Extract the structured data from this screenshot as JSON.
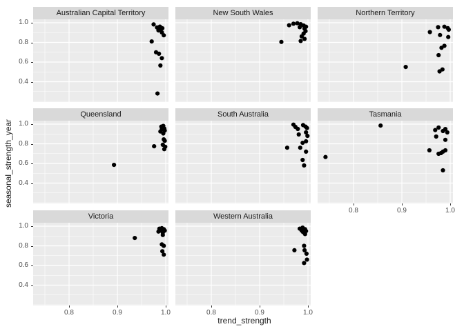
{
  "figure": {
    "colors": {
      "background": "#ffffff",
      "panel_bg": "#ebebeb",
      "strip_bg": "#d9d9d9",
      "grid": "#ffffff",
      "point": "#000000",
      "tick_text": "#4d4d4d",
      "title_text": "#1a1a1a"
    }
  },
  "chart_data": {
    "type": "scatter",
    "title": "",
    "xlabel": "trend_strength",
    "ylabel": "seasonal_strength_year",
    "legend": "none",
    "grid": "on",
    "facet_columns": 3,
    "xlim": [
      0.7257,
      1.0057
    ],
    "ylim": [
      0.193,
      1.0351
    ],
    "x_ticks": [
      0.8,
      0.9,
      1.0
    ],
    "y_ticks": [
      1.0,
      0.8,
      0.6,
      0.4
    ],
    "x_tick_labels": [
      "0.8",
      "0.9",
      "1.0"
    ],
    "y_tick_labels": [
      "1.0",
      "0.8",
      "0.6",
      "0.4"
    ],
    "x_minor_ticks": [
      0.75,
      0.85,
      0.95
    ],
    "y_minor_ticks": [
      0.2,
      0.3,
      0.5,
      0.7,
      0.9
    ],
    "facets": [
      {
        "label": "Australian Capital Territory",
        "points": [
          [
            0.975,
            0.983
          ],
          [
            0.982,
            0.952
          ],
          [
            0.988,
            0.961
          ],
          [
            0.99,
            0.937
          ],
          [
            0.993,
            0.944
          ],
          [
            0.985,
            0.922
          ],
          [
            0.992,
            0.902
          ],
          [
            0.996,
            0.872
          ],
          [
            0.971,
            0.81
          ],
          [
            0.98,
            0.7
          ],
          [
            0.986,
            0.685
          ],
          [
            0.992,
            0.64
          ],
          [
            0.989,
            0.565
          ],
          [
            0.983,
            0.28
          ]
        ]
      },
      {
        "label": "New South Wales",
        "points": [
          [
            0.961,
            0.975
          ],
          [
            0.97,
            0.99
          ],
          [
            0.978,
            0.995
          ],
          [
            0.985,
            0.985
          ],
          [
            0.991,
            0.972
          ],
          [
            0.996,
            0.96
          ],
          [
            0.983,
            0.955
          ],
          [
            0.993,
            0.94
          ],
          [
            0.995,
            0.915
          ],
          [
            0.991,
            0.89
          ],
          [
            0.987,
            0.862
          ],
          [
            0.993,
            0.836
          ],
          [
            0.985,
            0.815
          ],
          [
            0.945,
            0.805
          ]
        ]
      },
      {
        "label": "Northern Territory",
        "points": [
          [
            0.975,
            0.955
          ],
          [
            0.988,
            0.96
          ],
          [
            0.995,
            0.945
          ],
          [
            0.958,
            0.905
          ],
          [
            0.997,
            0.93
          ],
          [
            0.979,
            0.875
          ],
          [
            0.996,
            0.855
          ],
          [
            0.988,
            0.765
          ],
          [
            0.982,
            0.745
          ],
          [
            0.976,
            0.67
          ],
          [
            0.908,
            0.55
          ],
          [
            0.984,
            0.525
          ],
          [
            0.978,
            0.505
          ]
        ]
      },
      {
        "label": "Queensland",
        "points": [
          [
            0.991,
            0.975
          ],
          [
            0.995,
            0.982
          ],
          [
            0.997,
            0.955
          ],
          [
            0.992,
            0.948
          ],
          [
            0.998,
            0.935
          ],
          [
            0.989,
            0.925
          ],
          [
            0.995,
            0.905
          ],
          [
            0.996,
            0.845
          ],
          [
            0.998,
            0.83
          ],
          [
            0.994,
            0.79
          ],
          [
            0.999,
            0.77
          ],
          [
            0.976,
            0.775
          ],
          [
            0.997,
            0.745
          ],
          [
            0.893,
            0.585
          ]
        ]
      },
      {
        "label": "South Australia",
        "points": [
          [
            0.97,
            0.995
          ],
          [
            0.974,
            0.972
          ],
          [
            0.979,
            0.951
          ],
          [
            0.99,
            0.99
          ],
          [
            0.995,
            0.975
          ],
          [
            0.998,
            0.96
          ],
          [
            0.996,
            0.916
          ],
          [
            0.981,
            0.895
          ],
          [
            0.999,
            0.88
          ],
          [
            0.996,
            0.825
          ],
          [
            0.989,
            0.81
          ],
          [
            0.957,
            0.76
          ],
          [
            0.984,
            0.76
          ],
          [
            0.996,
            0.72
          ],
          [
            0.989,
            0.635
          ],
          [
            0.992,
            0.58
          ]
        ]
      },
      {
        "label": "Tasmania",
        "points": [
          [
            0.856,
            0.985
          ],
          [
            0.969,
            0.94
          ],
          [
            0.976,
            0.965
          ],
          [
            0.985,
            0.93
          ],
          [
            0.99,
            0.95
          ],
          [
            0.994,
            0.916
          ],
          [
            0.971,
            0.874
          ],
          [
            0.99,
            0.84
          ],
          [
            0.957,
            0.733
          ],
          [
            0.976,
            0.698
          ],
          [
            0.981,
            0.705
          ],
          [
            0.985,
            0.72
          ],
          [
            0.99,
            0.733
          ],
          [
            0.742,
            0.665
          ],
          [
            0.985,
            0.53
          ]
        ]
      },
      {
        "label": "Victoria",
        "points": [
          [
            0.987,
            0.975
          ],
          [
            0.992,
            0.98
          ],
          [
            0.996,
            0.97
          ],
          [
            0.99,
            0.955
          ],
          [
            0.998,
            0.955
          ],
          [
            0.985,
            0.945
          ],
          [
            0.994,
            0.935
          ],
          [
            0.994,
            0.91
          ],
          [
            0.936,
            0.88
          ],
          [
            0.992,
            0.815
          ],
          [
            0.996,
            0.8
          ],
          [
            0.993,
            0.745
          ],
          [
            0.996,
            0.71
          ]
        ]
      },
      {
        "label": "Western Australia",
        "points": [
          [
            0.983,
            0.975
          ],
          [
            0.989,
            0.985
          ],
          [
            0.994,
            0.97
          ],
          [
            0.987,
            0.955
          ],
          [
            0.996,
            0.95
          ],
          [
            0.99,
            0.94
          ],
          [
            0.994,
            0.92
          ],
          [
            0.992,
            0.8
          ],
          [
            0.972,
            0.755
          ],
          [
            0.993,
            0.755
          ],
          [
            0.997,
            0.72
          ],
          [
            0.998,
            0.66
          ],
          [
            0.992,
            0.625
          ]
        ]
      }
    ]
  }
}
